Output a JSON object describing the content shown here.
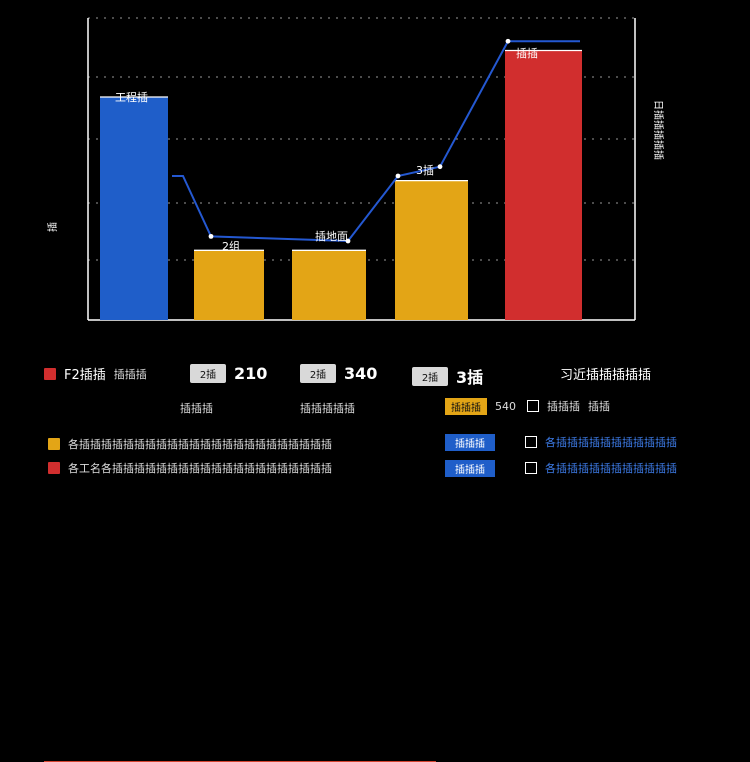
{
  "chart_data": {
    "type": "bar",
    "categories": [
      "",
      "",
      "",
      "",
      ""
    ],
    "series": [
      {
        "values": [
          48,
          15,
          15,
          30,
          58
        ]
      }
    ],
    "line": [
      31,
      18,
      17,
      31,
      60
    ],
    "labels": [
      "工程插",
      "2组",
      "插地面",
      "3插",
      "插插"
    ],
    "ylim": [
      0,
      65
    ],
    "grid": true,
    "colors": [
      "#1f5ec9",
      "#e3a516",
      "#e3a516",
      "#e3a516",
      "#d12e2e"
    ],
    "line_color": "#2458d1",
    "ylabel": "插",
    "right_label": "日插插插插插"
  },
  "legend": {
    "left_title": "F2插插",
    "left_note": "插插插",
    "pill1": "2插",
    "num1": "210",
    "pill2": "2插",
    "num2": "340",
    "pill3": "2插",
    "num3": "3插",
    "right_title": "习近插插插插插",
    "small_left": "插插插",
    "small_mid": "插插插插插",
    "orange_label": "插插插",
    "orange_value": "540",
    "right_small": "插插插",
    "right_small_2": "插插",
    "row1_text": "各插插插插插插插插插插插插插插插插插插插插插插插",
    "row2_text": "各工名各插插插插插插插插插插插插插插插插插插插插",
    "blue1": "插插插",
    "blue2": "插插插",
    "check1": "各插插插插插插插插插插插",
    "check2": "各插插插插插插插插插插插"
  }
}
